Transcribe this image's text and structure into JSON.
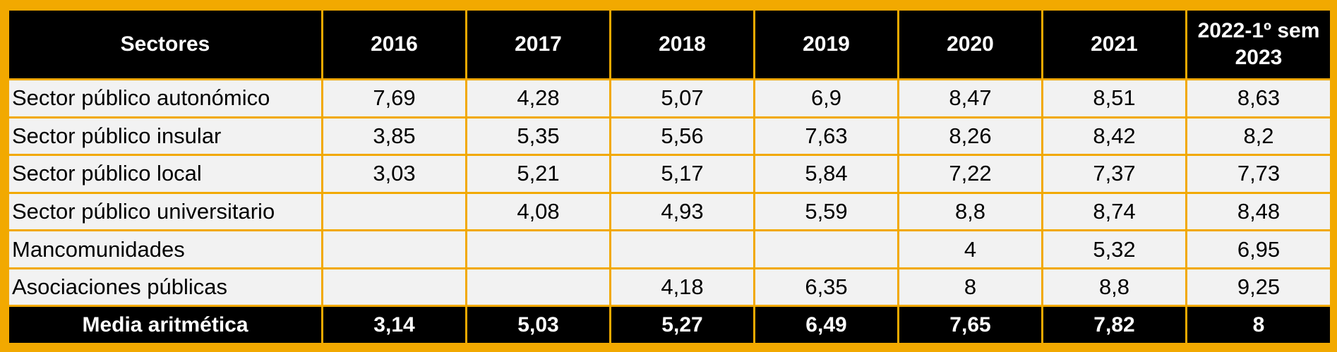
{
  "table": {
    "headers": [
      "Sectores",
      "2016",
      "2017",
      "2018",
      "2019",
      "2020",
      "2021",
      "2022-1º sem 2023"
    ],
    "rows": [
      [
        "Sector público autonómico",
        "7,69",
        "4,28",
        "5,07",
        "6,9",
        "8,47",
        "8,51",
        "8,63"
      ],
      [
        "Sector público insular",
        "3,85",
        "5,35",
        "5,56",
        "7,63",
        "8,26",
        "8,42",
        "8,2"
      ],
      [
        "Sector público local",
        "3,03",
        "5,21",
        "5,17",
        "5,84",
        "7,22",
        "7,37",
        "7,73"
      ],
      [
        "Sector público universitario",
        "",
        "4,08",
        "4,93",
        "5,59",
        "8,8",
        "8,74",
        "8,48"
      ],
      [
        "Mancomunidades",
        "",
        "",
        "",
        "",
        "4",
        "5,32",
        "6,95"
      ],
      [
        "Asociaciones públicas",
        "",
        "",
        "4,18",
        "6,35",
        "8",
        "8,8",
        "9,25"
      ]
    ],
    "total": [
      "Media aritmética",
      "3,14",
      "5,03",
      "5,27",
      "6,49",
      "7,65",
      "7,82",
      "8"
    ]
  },
  "colors": {
    "border": "#f2a900",
    "header_bg": "#000000",
    "header_text": "#ffffff",
    "cell_bg": "#f2f2f2"
  }
}
